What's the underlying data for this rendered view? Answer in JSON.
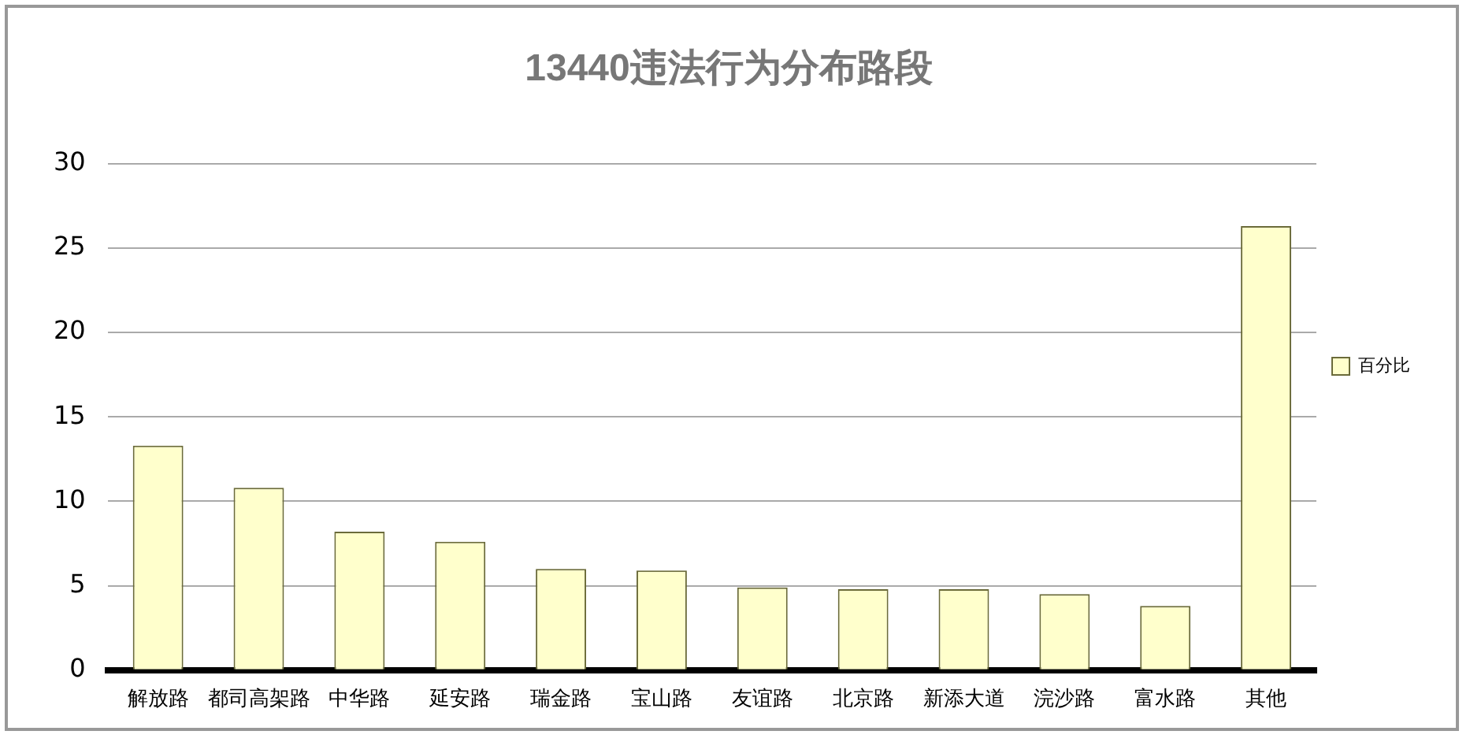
{
  "chart_data": {
    "type": "bar",
    "title": "13440违法行为分布路段",
    "categories": [
      "解放路",
      "都司高架路",
      "中华路",
      "延安路",
      "瑞金路",
      "宝山路",
      "友谊路",
      "北京路",
      "新添大道",
      "浣沙路",
      "富水路",
      "其他"
    ],
    "series": [
      {
        "name": "百分比",
        "color": "#ffffcc",
        "values": [
          13.3,
          10.8,
          8.2,
          7.6,
          6.0,
          5.9,
          4.9,
          4.8,
          4.8,
          4.5,
          3.8,
          26.3
        ]
      }
    ],
    "ylim": [
      0,
      30
    ],
    "yticks": [
      0,
      5,
      10,
      15,
      20,
      25,
      30
    ],
    "grid": "y",
    "legend": "right"
  }
}
